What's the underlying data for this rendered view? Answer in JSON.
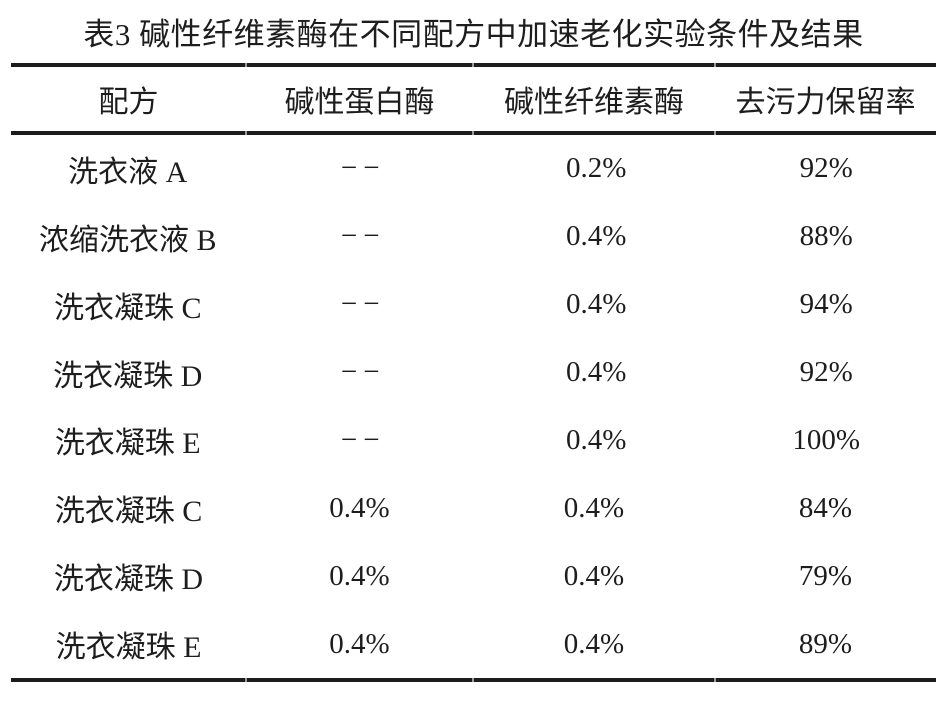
{
  "caption": "表3 碱性纤维素酶在不同配方中加速老化实验条件及结果",
  "table": {
    "columns": [
      "配方",
      "碱性蛋白酶",
      "碱性纤维素酶",
      "去污力保留率"
    ],
    "rows": [
      [
        "洗衣液 A",
        "−−",
        "0.2%",
        "92%"
      ],
      [
        "浓缩洗衣液 B",
        "−−",
        "0.4%",
        "88%"
      ],
      [
        "洗衣凝珠 C",
        "−−",
        "0.4%",
        "94%"
      ],
      [
        "洗衣凝珠 D",
        "−−",
        "0.4%",
        "92%"
      ],
      [
        "洗衣凝珠 E",
        "−−",
        "0.4%",
        "100%"
      ],
      [
        "洗衣凝珠 C",
        "0.4%",
        "0.4%",
        "84%"
      ],
      [
        "洗衣凝珠 D",
        "0.4%",
        "0.4%",
        "79%"
      ],
      [
        "洗衣凝珠 E",
        "0.4%",
        "0.4%",
        "89%"
      ]
    ]
  },
  "colors": {
    "text": "#1d1d1d",
    "rule": "#1c1c1c",
    "background": "#ffffff"
  }
}
